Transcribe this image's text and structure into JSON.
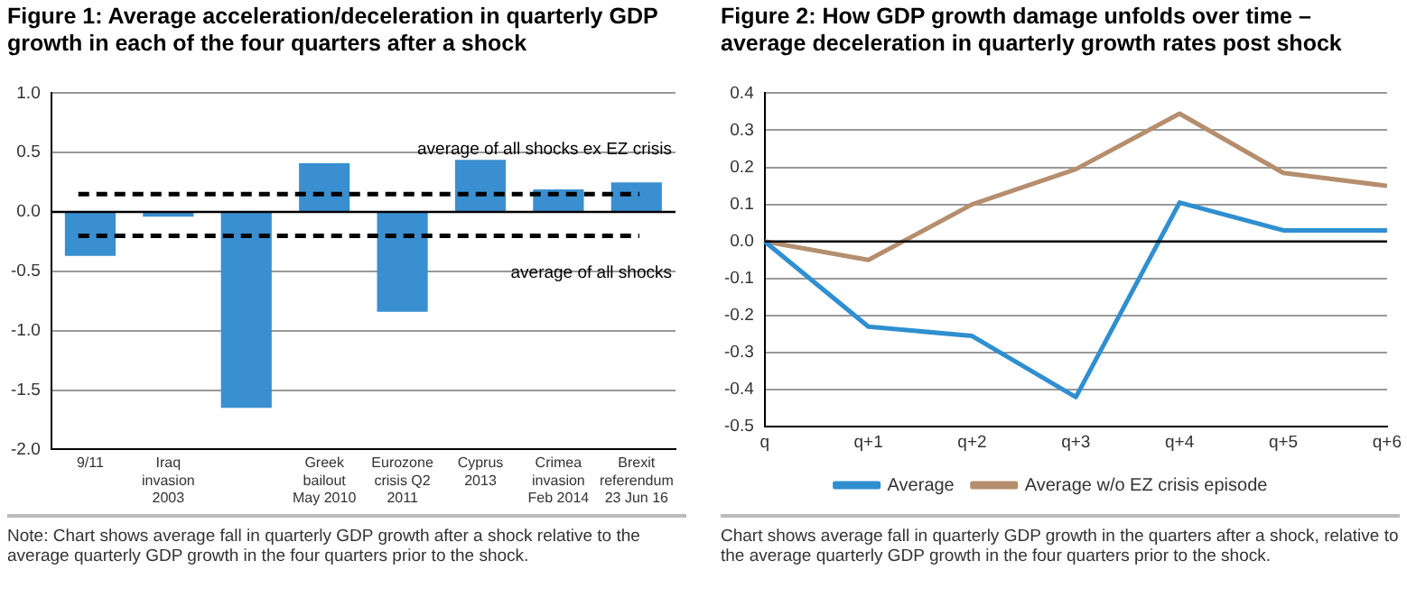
{
  "chart_data": [
    {
      "type": "bar",
      "title": "Figure 1: Average acceleration/deceleration in quarterly GDP growth in each of the four quarters after a shock",
      "categories": [
        "9/11",
        "Iraq invasion 2003",
        null,
        "Greek bailout May 2010",
        "Eurozone crisis Q2 2011",
        "Cyprus 2013",
        "Crimea invasion Feb 2014",
        "Brexit referendum 23 Jun 16"
      ],
      "values": [
        -0.37,
        -0.04,
        -1.65,
        0.41,
        -0.84,
        0.44,
        0.19,
        0.25
      ],
      "color": "#3a8fd0",
      "ylim": [
        -2.0,
        1.0
      ],
      "yticks": [
        {
          "value": -2,
          "label": "-2.0"
        },
        {
          "value": -1.5,
          "label": "-1.5"
        },
        {
          "value": -1,
          "label": "-1.0"
        },
        {
          "value": -0.5,
          "label": "-0.5"
        },
        {
          "value": 0,
          "label": "0.0"
        },
        {
          "value": 0.5,
          "label": "0.5"
        },
        {
          "value": 1,
          "label": "1.0"
        }
      ],
      "grid": "y",
      "legend": false,
      "ref_lines": [
        {
          "axis": "y",
          "value": 0.15,
          "label": "average of all shocks ex EZ crisis",
          "color": "#000000",
          "line_style": "dashed"
        },
        {
          "axis": "y",
          "value": -0.2,
          "label": "average of all shocks",
          "color": "#000000",
          "line_style": "dashed"
        }
      ],
      "annotations": [
        "Note: Chart shows average fall in quarterly GDP growth after a shock relative to the average quarterly GDP growth in the four quarters prior to the shock."
      ]
    },
    {
      "type": "line",
      "title": "Figure 2: How GDP growth damage unfolds over time – average deceleration in quarterly growth rates post shock",
      "categories": [
        "q",
        "q+1",
        "q+2",
        "q+3",
        "q+4",
        "q+5",
        "q+6"
      ],
      "series": [
        {
          "name": "Average",
          "color": "#2f8fd0",
          "values": [
            0,
            -0.23,
            -0.255,
            -0.42,
            0.105,
            0.03,
            0.03
          ]
        },
        {
          "name": "Average w/o EZ crisis episode",
          "color": "#b58e6e",
          "values": [
            0,
            -0.05,
            0.1,
            0.195,
            0.345,
            0.185,
            0.15
          ]
        }
      ],
      "ylim": [
        -0.5,
        0.4
      ],
      "yticks": [
        {
          "value": -0.5,
          "label": "-0.5"
        },
        {
          "value": -0.4,
          "label": "-0.4"
        },
        {
          "value": -0.3,
          "label": "-0.3"
        },
        {
          "value": -0.2,
          "label": "-0.2"
        },
        {
          "value": -0.1,
          "label": "-0.1"
        },
        {
          "value": 0,
          "label": "0.0"
        },
        {
          "value": 0.1,
          "label": "0.1"
        },
        {
          "value": 0.2,
          "label": "0.2"
        },
        {
          "value": 0.3,
          "label": "0.3"
        },
        {
          "value": 0.4,
          "label": "0.4"
        }
      ],
      "grid": "y",
      "legend": "bottom",
      "marker": "none",
      "line_style": "solid",
      "annotations": [
        "Chart shows average fall in quarterly GDP growth in the quarters after a shock, relative to the average quarterly GDP growth in the four quarters prior to the shock."
      ]
    }
  ]
}
